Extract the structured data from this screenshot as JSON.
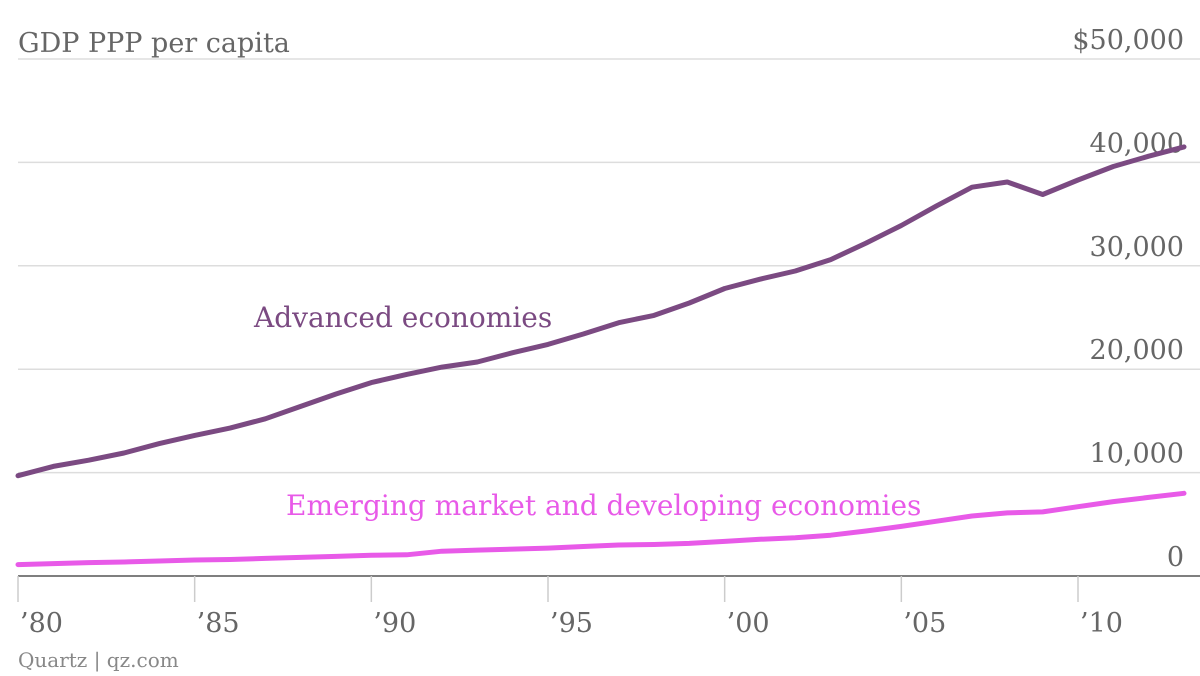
{
  "chart_data": {
    "type": "line",
    "title": "GDP PPP per capita",
    "ylim": [
      0,
      50000
    ],
    "xlim": [
      1980,
      2013
    ],
    "grid": true,
    "y_ticks": [
      {
        "value": 50000,
        "label": "$50,000"
      },
      {
        "value": 40000,
        "label": "40,000"
      },
      {
        "value": 30000,
        "label": "30,000"
      },
      {
        "value": 20000,
        "label": "20,000"
      },
      {
        "value": 10000,
        "label": "10,000"
      },
      {
        "value": 0,
        "label": "0"
      }
    ],
    "x_ticks": [
      {
        "value": 1980,
        "label": "’80"
      },
      {
        "value": 1985,
        "label": "’85"
      },
      {
        "value": 1990,
        "label": "’90"
      },
      {
        "value": 1995,
        "label": "’95"
      },
      {
        "value": 2000,
        "label": "’00"
      },
      {
        "value": 2005,
        "label": "’05"
      },
      {
        "value": 2010,
        "label": "’10"
      }
    ],
    "x": [
      1980,
      1981,
      1982,
      1983,
      1984,
      1985,
      1986,
      1987,
      1988,
      1989,
      1990,
      1991,
      1992,
      1993,
      1994,
      1995,
      1996,
      1997,
      1998,
      1999,
      2000,
      2001,
      2002,
      2003,
      2004,
      2005,
      2006,
      2007,
      2008,
      2009,
      2010,
      2011,
      2012,
      2013
    ],
    "series": [
      {
        "name": "Advanced economies",
        "color": "#7b4a82",
        "values": [
          9700,
          10600,
          11200,
          11900,
          12800,
          13600,
          14300,
          15200,
          16400,
          17600,
          18700,
          19500,
          20200,
          20700,
          21600,
          22400,
          23400,
          24500,
          25200,
          26400,
          27800,
          28700,
          29500,
          30600,
          32200,
          33900,
          35800,
          37600,
          38100,
          36900,
          38300,
          39600,
          40600,
          41500
        ]
      },
      {
        "name": "Emerging market and developing economies",
        "color": "#e85ae8",
        "values": [
          1100,
          1200,
          1300,
          1350,
          1450,
          1550,
          1600,
          1700,
          1800,
          1900,
          2000,
          2050,
          2400,
          2500,
          2600,
          2700,
          2850,
          3000,
          3050,
          3150,
          3350,
          3550,
          3700,
          3950,
          4350,
          4800,
          5300,
          5800,
          6100,
          6200,
          6700,
          7200,
          7600,
          8000
        ]
      }
    ],
    "source": "Quartz | qz.com"
  }
}
